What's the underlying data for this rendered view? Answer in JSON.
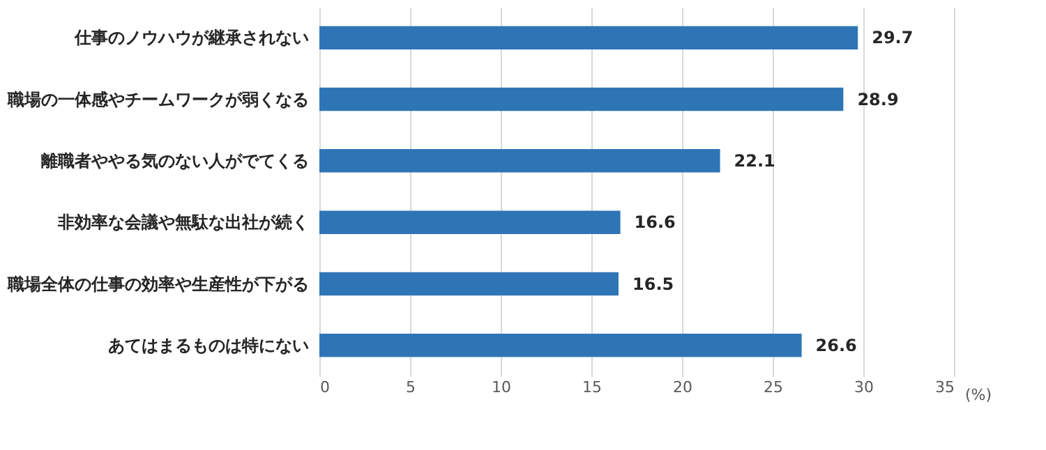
{
  "chart_data": {
    "type": "bar",
    "orientation": "horizontal",
    "categories": [
      "仕事のノウハウが継承されない",
      "職場の一体感やチームワークが弱くなる",
      "離職者ややる気のない人がでてくる",
      "非効率な会議や無駄な出社が続く",
      "職場全体の仕事の効率や生産性が下がる",
      "あてはまるものは特にない"
    ],
    "values": [
      29.7,
      28.9,
      22.1,
      16.6,
      16.5,
      26.6
    ],
    "color": "#2e75b6",
    "xlabel": "(%)",
    "xlim": [
      0,
      35
    ],
    "xticks": [
      0,
      5,
      10,
      15,
      20,
      25,
      30,
      35
    ],
    "grid": "x",
    "data_labels": true
  }
}
